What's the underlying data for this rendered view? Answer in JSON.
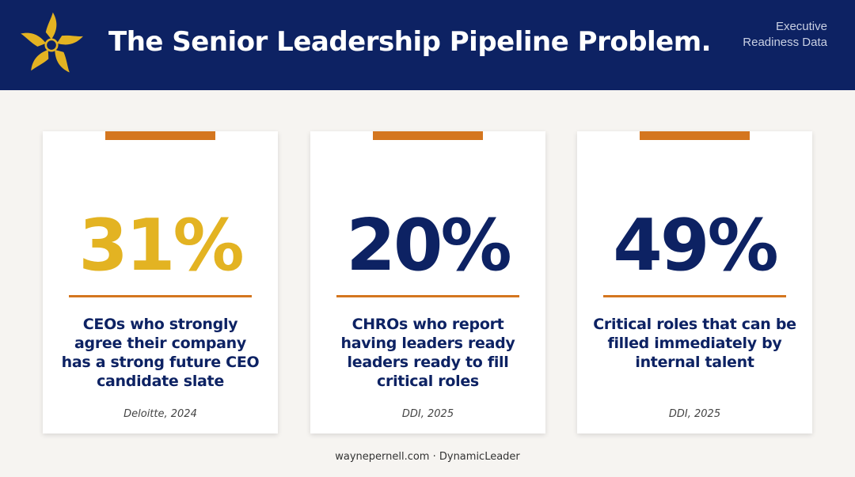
{
  "header": {
    "title": "The Senior Leadership Pipeline Problem.",
    "tag": "Executive Readiness Data",
    "logo": "sunburst-people-logo"
  },
  "cards": [
    {
      "stat": "31%",
      "stat_color": "#e3b322",
      "description": "CEOs who strongly agree their company has a strong future CEO candidate slate",
      "source": "Deloitte, 2024"
    },
    {
      "stat": "20%",
      "stat_color": "#0d2263",
      "description": "CHROs who report having leaders ready leaders ready to fill critical roles",
      "source": "DDI, 2025"
    },
    {
      "stat": "49%",
      "stat_color": "#0d2263",
      "description": "Critical roles that can be filled immediately by internal talent",
      "source": "DDI, 2025"
    }
  ],
  "footer": {
    "text": "waynepernell.com · DynamicLeader"
  },
  "colors": {
    "navy": "#0d2263",
    "gold": "#e3b322",
    "orange": "#d4761f",
    "background": "#f6f4f1"
  }
}
